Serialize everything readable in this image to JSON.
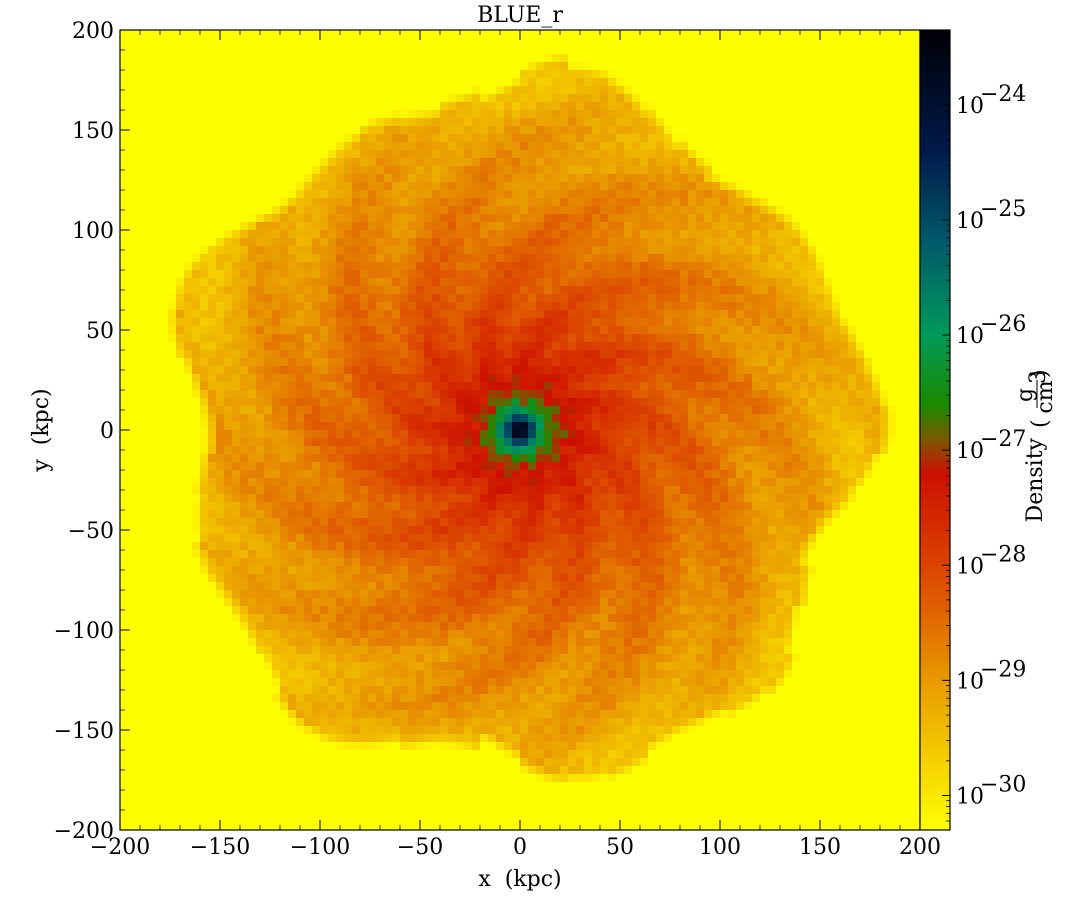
{
  "chart_data": {
    "type": "heatmap",
    "title": "BLUE_r",
    "xlabel": "x  (kpc)",
    "ylabel": "y  (kpc)",
    "xlim": [
      -200,
      200
    ],
    "ylim": [
      -200,
      200
    ],
    "x_ticks": [
      -200,
      -150,
      -100,
      -50,
      0,
      50,
      100,
      150,
      200
    ],
    "y_ticks": [
      -200,
      -150,
      -100,
      -50,
      0,
      50,
      100,
      150,
      200
    ],
    "x_tick_labels": [
      "−200",
      "−150",
      "−100",
      "−50",
      "0",
      "50",
      "100",
      "150",
      "200"
    ],
    "y_tick_labels": [
      "−200",
      "−150",
      "−100",
      "−50",
      "0",
      "50",
      "100",
      "150",
      "200"
    ],
    "colorbar": {
      "label": "Density",
      "unit_numerator": "g",
      "unit_denominator": "cm",
      "unit_denominator_exponent": "3",
      "scale": "log",
      "range_log10": [
        -30.3,
        -23.35
      ],
      "tick_exponents": [
        -30,
        -29,
        -28,
        -27,
        -26,
        -25,
        -24
      ],
      "tick_base": "10",
      "tick_labels": [
        "−30",
        "−29",
        "−28",
        "−27",
        "−26",
        "−25",
        "−24"
      ],
      "colormap_stops": [
        {
          "log10": -30.3,
          "color": "#ffff00"
        },
        {
          "log10": -29.6,
          "color": "#f3c800"
        },
        {
          "log10": -29.0,
          "color": "#e89a00"
        },
        {
          "log10": -28.4,
          "color": "#e06200"
        },
        {
          "log10": -27.8,
          "color": "#d83500"
        },
        {
          "log10": -27.2,
          "color": "#cc1000"
        },
        {
          "log10": -26.9,
          "color": "#7a5a00"
        },
        {
          "log10": -26.6,
          "color": "#1a8a00"
        },
        {
          "log10": -26.0,
          "color": "#009a5a"
        },
        {
          "log10": -25.2,
          "color": "#005a6a"
        },
        {
          "log10": -24.4,
          "color": "#001a4a"
        },
        {
          "log10": -23.35,
          "color": "#000005"
        }
      ]
    },
    "field": {
      "description_model": "radial density profile",
      "background_log10": -30.3,
      "halo_radius_kpc": 168,
      "halo_edge_log10": -29.4,
      "profile": [
        {
          "r_kpc": 0,
          "log10": -23.4
        },
        {
          "r_kpc": 4,
          "log10": -24.0
        },
        {
          "r_kpc": 8,
          "log10": -25.6
        },
        {
          "r_kpc": 14,
          "log10": -26.6
        },
        {
          "r_kpc": 22,
          "log10": -27.2
        },
        {
          "r_kpc": 40,
          "log10": -27.7
        },
        {
          "r_kpc": 70,
          "log10": -28.2
        },
        {
          "r_kpc": 110,
          "log10": -28.7
        },
        {
          "r_kpc": 150,
          "log10": -29.1
        },
        {
          "r_kpc": 168,
          "log10": -29.4
        }
      ]
    }
  }
}
